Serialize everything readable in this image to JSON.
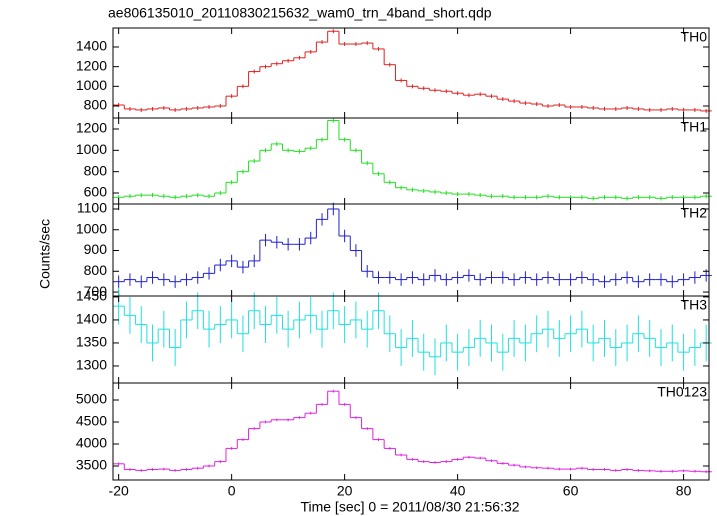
{
  "chart_data": [
    {
      "type": "line",
      "title": "ae806135010_20110830215632_wam0_trn_4band_short.qdp",
      "name": "TH0",
      "color": "#e02020",
      "error": 20,
      "x": [
        -20,
        -18,
        -16,
        -14,
        -12,
        -10,
        -8,
        -6,
        -4,
        -2,
        0,
        2,
        4,
        6,
        8,
        10,
        12,
        14,
        16,
        18,
        20,
        22,
        24,
        26,
        28,
        30,
        32,
        34,
        36,
        38,
        40,
        42,
        44,
        46,
        48,
        50,
        52,
        54,
        56,
        58,
        60,
        62,
        64,
        66,
        68,
        70,
        72,
        74,
        76,
        78,
        80,
        82,
        84
      ],
      "values": [
        810,
        770,
        760,
        770,
        780,
        760,
        770,
        780,
        790,
        800,
        900,
        1000,
        1150,
        1200,
        1230,
        1260,
        1290,
        1350,
        1450,
        1560,
        1430,
        1430,
        1440,
        1380,
        1220,
        1060,
        1000,
        980,
        960,
        950,
        930,
        910,
        920,
        900,
        870,
        850,
        830,
        820,
        800,
        810,
        790,
        790,
        780,
        770,
        770,
        780,
        770,
        760,
        760,
        770,
        760,
        760,
        750
      ],
      "xlim": [
        -21,
        84.5
      ],
      "ylim": [
        678,
        1593
      ],
      "yticks": [
        800,
        1000,
        1200,
        1400
      ]
    },
    {
      "type": "line",
      "name": "TH1",
      "color": "#20e020",
      "error": 20,
      "x": [
        -20,
        -18,
        -16,
        -14,
        -12,
        -10,
        -8,
        -6,
        -4,
        -2,
        0,
        2,
        4,
        6,
        8,
        10,
        12,
        14,
        16,
        18,
        20,
        22,
        24,
        26,
        28,
        30,
        32,
        34,
        36,
        38,
        40,
        42,
        44,
        46,
        48,
        50,
        52,
        54,
        56,
        58,
        60,
        62,
        64,
        66,
        68,
        70,
        72,
        74,
        76,
        78,
        80,
        82,
        84
      ],
      "values": [
        560,
        570,
        580,
        580,
        570,
        560,
        570,
        580,
        570,
        600,
        700,
        800,
        900,
        1000,
        1060,
        1000,
        990,
        1020,
        1100,
        1280,
        1100,
        1000,
        880,
        780,
        700,
        650,
        630,
        620,
        610,
        600,
        590,
        590,
        580,
        570,
        570,
        560,
        560,
        560,
        570,
        560,
        560,
        560,
        550,
        560,
        560,
        550,
        560,
        560,
        550,
        560,
        560,
        560,
        570
      ],
      "xlim": [
        -21,
        84.5
      ],
      "ylim": [
        497,
        1303
      ],
      "yticks": [
        600,
        800,
        1000,
        1200
      ]
    },
    {
      "type": "line",
      "name": "TH2",
      "color": "#2020d0",
      "error": 30,
      "y_label": "Counts/sec",
      "x": [
        -20,
        -18,
        -16,
        -14,
        -12,
        -10,
        -8,
        -6,
        -4,
        -2,
        0,
        2,
        4,
        6,
        8,
        10,
        12,
        14,
        16,
        18,
        20,
        22,
        24,
        26,
        28,
        30,
        32,
        34,
        36,
        38,
        40,
        42,
        44,
        46,
        48,
        50,
        52,
        54,
        56,
        58,
        60,
        62,
        64,
        66,
        68,
        70,
        72,
        74,
        76,
        78,
        80,
        82,
        84
      ],
      "values": [
        750,
        760,
        750,
        770,
        760,
        750,
        760,
        770,
        790,
        830,
        850,
        820,
        850,
        950,
        940,
        930,
        930,
        960,
        1050,
        1100,
        970,
        900,
        800,
        770,
        770,
        760,
        770,
        760,
        780,
        760,
        770,
        780,
        760,
        770,
        770,
        760,
        770,
        760,
        770,
        760,
        760,
        770,
        760,
        750,
        760,
        770,
        750,
        760,
        760,
        750,
        760,
        770,
        780
      ],
      "xlim": [
        -21,
        84.5
      ],
      "ylim": [
        681,
        1124
      ],
      "yticks": [
        700,
        800,
        900,
        1000,
        1100
      ]
    },
    {
      "type": "line",
      "name": "TH3",
      "color": "#20e0e0",
      "error": 40,
      "x": [
        -20,
        -18,
        -16,
        -14,
        -12,
        -10,
        -8,
        -6,
        -4,
        -2,
        0,
        2,
        4,
        6,
        8,
        10,
        12,
        14,
        16,
        18,
        20,
        22,
        24,
        26,
        28,
        30,
        32,
        34,
        36,
        38,
        40,
        42,
        44,
        46,
        48,
        50,
        52,
        54,
        56,
        58,
        60,
        62,
        64,
        66,
        68,
        70,
        72,
        74,
        76,
        78,
        80,
        82,
        84
      ],
      "values": [
        1430,
        1410,
        1390,
        1350,
        1380,
        1340,
        1400,
        1420,
        1380,
        1390,
        1400,
        1370,
        1420,
        1390,
        1410,
        1380,
        1400,
        1410,
        1380,
        1420,
        1390,
        1400,
        1380,
        1420,
        1370,
        1340,
        1360,
        1330,
        1320,
        1350,
        1330,
        1340,
        1360,
        1350,
        1330,
        1360,
        1350,
        1370,
        1380,
        1360,
        1370,
        1380,
        1350,
        1360,
        1340,
        1350,
        1370,
        1360,
        1340,
        1350,
        1330,
        1340,
        1350
      ],
      "xlim": [
        -21,
        84.5
      ],
      "ylim": [
        1263,
        1452
      ],
      "yticks": [
        1300,
        1350,
        1400,
        1450
      ]
    },
    {
      "type": "line",
      "name": "TH0123",
      "color": "#e020e0",
      "error": 30,
      "x_label": "Time [sec] 0 = 2011/08/30 21:56:32",
      "x": [
        -20,
        -18,
        -16,
        -14,
        -12,
        -10,
        -8,
        -6,
        -4,
        -2,
        0,
        2,
        4,
        6,
        8,
        10,
        12,
        14,
        16,
        18,
        20,
        22,
        24,
        26,
        28,
        30,
        32,
        34,
        36,
        38,
        40,
        42,
        44,
        46,
        48,
        50,
        52,
        54,
        56,
        58,
        60,
        62,
        64,
        66,
        68,
        70,
        72,
        74,
        76,
        78,
        80,
        82,
        84
      ],
      "values": [
        3550,
        3420,
        3400,
        3420,
        3430,
        3400,
        3420,
        3450,
        3500,
        3600,
        3900,
        4100,
        4350,
        4500,
        4550,
        4550,
        4600,
        4700,
        4900,
        5200,
        4900,
        4600,
        4350,
        4100,
        3900,
        3750,
        3650,
        3600,
        3580,
        3600,
        3650,
        3700,
        3680,
        3620,
        3560,
        3520,
        3480,
        3460,
        3450,
        3430,
        3430,
        3450,
        3420,
        3420,
        3400,
        3420,
        3400,
        3390,
        3380,
        3380,
        3390,
        3380,
        3370
      ],
      "xlim": [
        -21,
        84.5
      ],
      "ylim": [
        3182,
        5386
      ],
      "yticks": [
        3500,
        4000,
        4500,
        5000
      ],
      "xticks": [
        -20,
        0,
        20,
        40,
        60,
        80
      ]
    }
  ]
}
